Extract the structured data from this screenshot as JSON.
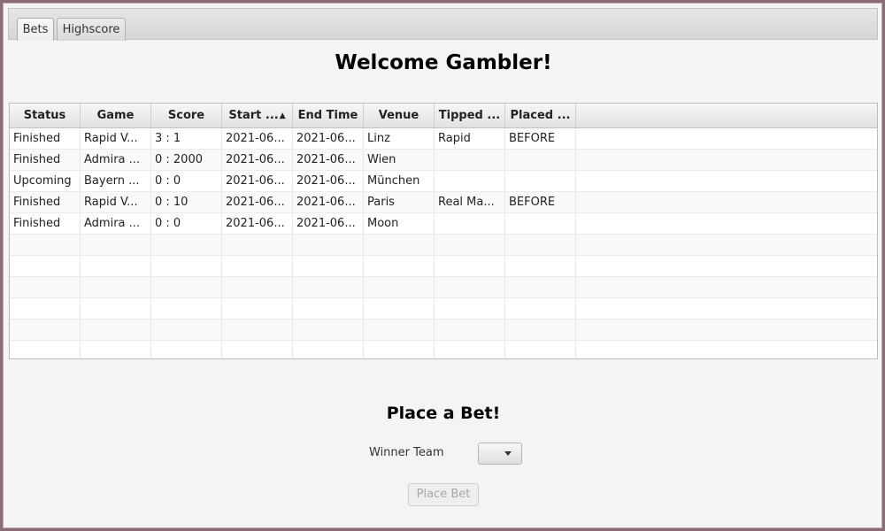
{
  "tabs": [
    {
      "label": "Bets",
      "active": true
    },
    {
      "label": "Highscore",
      "active": false
    }
  ],
  "welcome_title": "Welcome Gambler!",
  "table": {
    "sorted_column": "Start ...",
    "sort_direction": "ascending",
    "columns": [
      "Status",
      "Game",
      "Score",
      "Start ...",
      "End Time",
      "Venue",
      "Tipped ...",
      "Placed ..."
    ],
    "rows": [
      [
        "Finished",
        "Rapid V...",
        "3 : 1",
        "2021-06...",
        "2021-06...",
        "Linz",
        "Rapid",
        "BEFORE"
      ],
      [
        "Finished",
        "Admira ...",
        "0 : 2000",
        "2021-06...",
        "2021-06...",
        "Wien",
        "",
        ""
      ],
      [
        "Upcoming",
        "Bayern ...",
        "0 : 0",
        "2021-06...",
        "2021-06...",
        "München",
        "",
        ""
      ],
      [
        "Finished",
        "Rapid V...",
        "0 : 10",
        "2021-06...",
        "2021-06...",
        "Paris",
        "Real Ma...",
        "BEFORE"
      ],
      [
        "Finished",
        "Admira ...",
        "0 : 0",
        "2021-06...",
        "2021-06...",
        "Moon",
        "",
        ""
      ]
    ]
  },
  "bet_form": {
    "title": "Place a Bet!",
    "winner_label": "Winner Team",
    "winner_value": "",
    "button_label": "Place Bet",
    "button_enabled": false
  }
}
